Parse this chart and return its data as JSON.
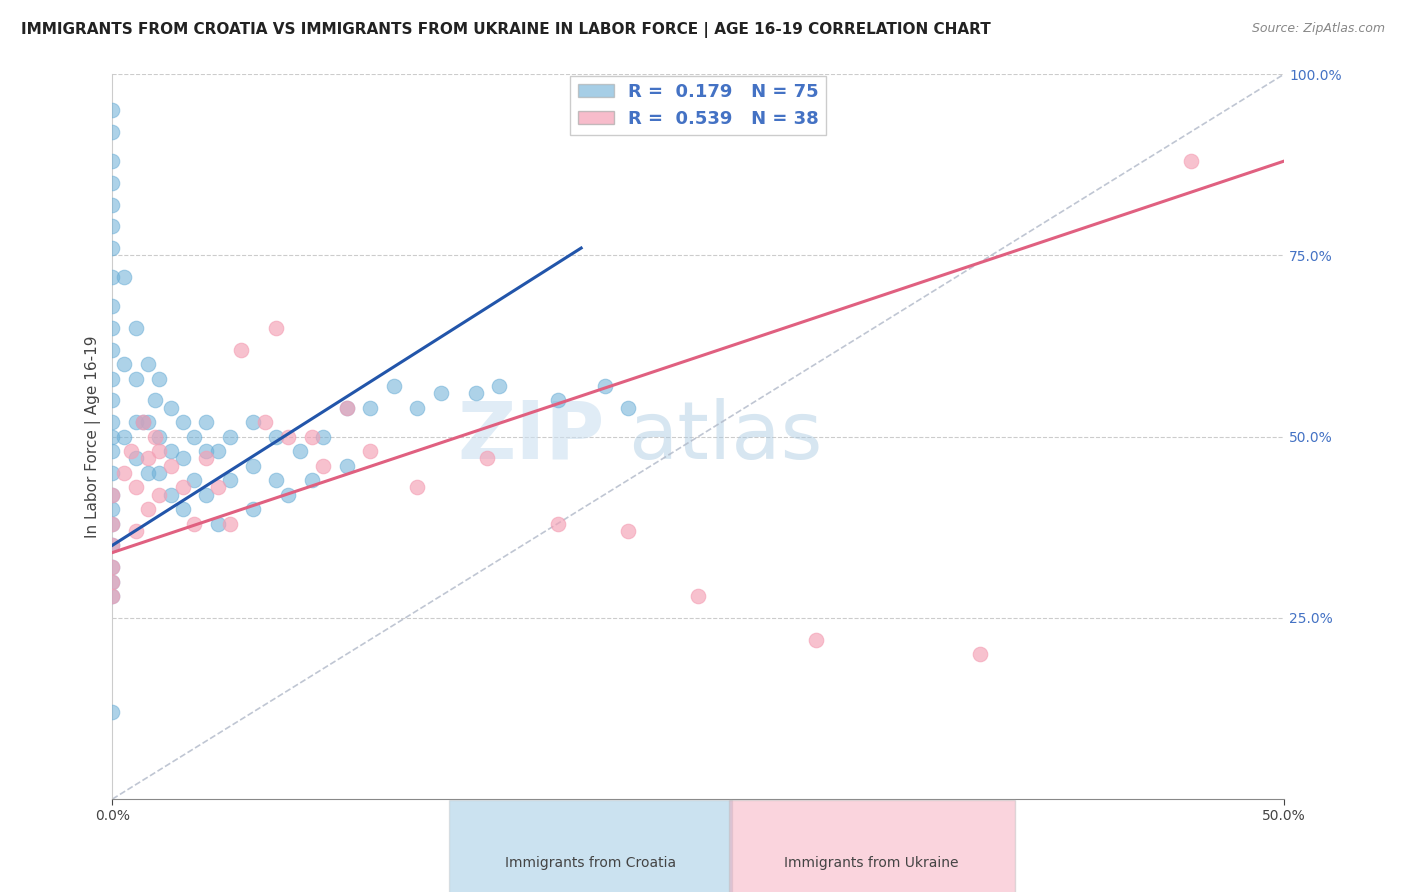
{
  "title": "IMMIGRANTS FROM CROATIA VS IMMIGRANTS FROM UKRAINE IN LABOR FORCE | AGE 16-19 CORRELATION CHART",
  "source": "Source: ZipAtlas.com",
  "ylabel": "In Labor Force | Age 16-19",
  "xlim": [
    0.0,
    0.5
  ],
  "ylim": [
    0.0,
    1.0
  ],
  "croatia_color": "#6baed6",
  "ukraine_color": "#f4a0b5",
  "croatia_line_color": "#2255aa",
  "ukraine_line_color": "#e06080",
  "croatia_R": 0.179,
  "croatia_N": 75,
  "ukraine_R": 0.539,
  "ukraine_N": 38,
  "croatia_scatter_x": [
    0.0,
    0.0,
    0.0,
    0.0,
    0.0,
    0.0,
    0.0,
    0.0,
    0.0,
    0.0,
    0.0,
    0.0,
    0.0,
    0.0,
    0.0,
    0.0,
    0.0,
    0.0,
    0.0,
    0.0,
    0.0,
    0.0,
    0.0,
    0.0,
    0.0,
    0.005,
    0.005,
    0.005,
    0.01,
    0.01,
    0.01,
    0.01,
    0.013,
    0.015,
    0.015,
    0.015,
    0.018,
    0.02,
    0.02,
    0.02,
    0.025,
    0.025,
    0.025,
    0.03,
    0.03,
    0.03,
    0.035,
    0.035,
    0.04,
    0.04,
    0.04,
    0.045,
    0.05,
    0.05,
    0.06,
    0.06,
    0.07,
    0.07,
    0.08,
    0.085,
    0.09,
    0.1,
    0.1,
    0.11,
    0.12,
    0.13,
    0.14,
    0.155,
    0.165,
    0.19,
    0.21,
    0.22,
    0.045,
    0.06,
    0.075
  ],
  "croatia_scatter_y": [
    0.95,
    0.92,
    0.88,
    0.85,
    0.82,
    0.79,
    0.76,
    0.72,
    0.68,
    0.65,
    0.62,
    0.58,
    0.55,
    0.52,
    0.5,
    0.48,
    0.45,
    0.42,
    0.4,
    0.38,
    0.35,
    0.32,
    0.3,
    0.28,
    0.12,
    0.72,
    0.6,
    0.5,
    0.65,
    0.58,
    0.52,
    0.47,
    0.52,
    0.6,
    0.52,
    0.45,
    0.55,
    0.58,
    0.5,
    0.45,
    0.54,
    0.48,
    0.42,
    0.52,
    0.47,
    0.4,
    0.5,
    0.44,
    0.52,
    0.48,
    0.42,
    0.48,
    0.5,
    0.44,
    0.52,
    0.46,
    0.5,
    0.44,
    0.48,
    0.44,
    0.5,
    0.54,
    0.46,
    0.54,
    0.57,
    0.54,
    0.56,
    0.56,
    0.57,
    0.55,
    0.57,
    0.54,
    0.38,
    0.4,
    0.42
  ],
  "ukraine_scatter_x": [
    0.0,
    0.0,
    0.0,
    0.0,
    0.0,
    0.0,
    0.005,
    0.008,
    0.01,
    0.01,
    0.013,
    0.015,
    0.015,
    0.018,
    0.02,
    0.02,
    0.025,
    0.03,
    0.035,
    0.04,
    0.045,
    0.05,
    0.055,
    0.065,
    0.07,
    0.075,
    0.085,
    0.09,
    0.1,
    0.11,
    0.13,
    0.16,
    0.19,
    0.22,
    0.25,
    0.3,
    0.37,
    0.46
  ],
  "ukraine_scatter_y": [
    0.42,
    0.38,
    0.35,
    0.32,
    0.3,
    0.28,
    0.45,
    0.48,
    0.43,
    0.37,
    0.52,
    0.47,
    0.4,
    0.5,
    0.48,
    0.42,
    0.46,
    0.43,
    0.38,
    0.47,
    0.43,
    0.38,
    0.62,
    0.52,
    0.65,
    0.5,
    0.5,
    0.46,
    0.54,
    0.48,
    0.43,
    0.47,
    0.38,
    0.37,
    0.28,
    0.22,
    0.2,
    0.88
  ],
  "title_fontsize": 11,
  "axis_label_fontsize": 11,
  "tick_fontsize": 10,
  "legend_fontsize": 13
}
